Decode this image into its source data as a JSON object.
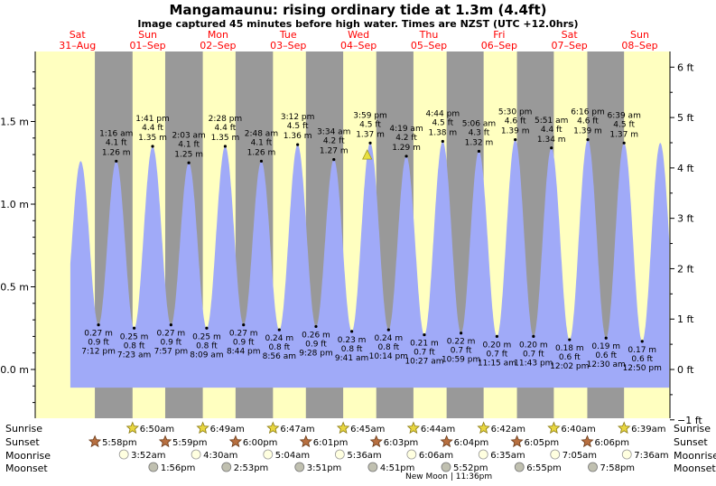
{
  "header": {
    "title": "Mangamaunu: rising  ordinary tide at 1.3m (4.4ft)",
    "subtitle": "Image captured 45 minutes before high water. Times are NZST (UTC +12.0hrs)"
  },
  "days": [
    {
      "dow": "Sat",
      "date": "31–Aug"
    },
    {
      "dow": "Sun",
      "date": "01–Sep"
    },
    {
      "dow": "Mon",
      "date": "02–Sep"
    },
    {
      "dow": "Tue",
      "date": "03–Sep"
    },
    {
      "dow": "Wed",
      "date": "04–Sep"
    },
    {
      "dow": "Thu",
      "date": "05–Sep"
    },
    {
      "dow": "Fri",
      "date": "06–Sep"
    },
    {
      "dow": "Sat",
      "date": "07–Sep"
    },
    {
      "dow": "Sun",
      "date": "08–Sep"
    }
  ],
  "colors": {
    "day": "#ffffc0",
    "night": "#999999",
    "water": "#a0aaf8",
    "date_text": "#ff0000",
    "marker": "#e8e040"
  },
  "chart_data": {
    "type": "area",
    "title": "Mangamaunu: rising  ordinary tide at 1.3m (4.4ft)",
    "x_range_days": [
      0,
      9
    ],
    "ylim_m": [
      -0.3,
      1.9
    ],
    "ylabel_left": "m",
    "ylabel_right": "ft",
    "left_ticks": [
      "0.0 m",
      "0.5 m",
      "1.0 m",
      "1.5 m"
    ],
    "right_ticks": [
      "−1 ft",
      "0 ft",
      "1 ft",
      "2 ft",
      "3 ft",
      "4 ft",
      "5 ft",
      "6 ft"
    ],
    "current": {
      "label": "rising ordinary tide at 1.3m (4.4ft)",
      "t": 4.6229,
      "h": 1.3
    },
    "extremes": [
      {
        "kind": "low",
        "time": "7:12 pm",
        "ft": "0.9 ft",
        "m": "0.27 m",
        "t": 0.8,
        "h": 0.27
      },
      {
        "kind": "high",
        "time": "1:16 am",
        "ft": "4.1 ft",
        "m": "1.26 m",
        "t": 1.0528,
        "h": 1.26
      },
      {
        "kind": "low",
        "time": "7:23 am",
        "ft": "0.8 ft",
        "m": "0.25 m",
        "t": 1.3076,
        "h": 0.25
      },
      {
        "kind": "high",
        "time": "1:41 pm",
        "ft": "4.4 ft",
        "m": "1.35 m",
        "t": 1.5701,
        "h": 1.35
      },
      {
        "kind": "low",
        "time": "7:57 pm",
        "ft": "0.9 ft",
        "m": "0.27 m",
        "t": 1.8313,
        "h": 0.27
      },
      {
        "kind": "high",
        "time": "2:03 am",
        "ft": "4.1 ft",
        "m": "1.25 m",
        "t": 2.0854,
        "h": 1.25
      },
      {
        "kind": "low",
        "time": "8:09 am",
        "ft": "0.8 ft",
        "m": "0.25 m",
        "t": 2.3396,
        "h": 0.25
      },
      {
        "kind": "high",
        "time": "2:28 pm",
        "ft": "4.4 ft",
        "m": "1.35 m",
        "t": 2.6028,
        "h": 1.35
      },
      {
        "kind": "low",
        "time": "8:44 pm",
        "ft": "0.9 ft",
        "m": "0.27 m",
        "t": 2.8639,
        "h": 0.27
      },
      {
        "kind": "high",
        "time": "2:48 am",
        "ft": "4.1 ft",
        "m": "1.26 m",
        "t": 3.1167,
        "h": 1.26
      },
      {
        "kind": "low",
        "time": "8:56 am",
        "ft": "0.8 ft",
        "m": "0.24 m",
        "t": 3.3722,
        "h": 0.24
      },
      {
        "kind": "high",
        "time": "3:12 pm",
        "ft": "4.5 ft",
        "m": "1.36 m",
        "t": 3.6333,
        "h": 1.36
      },
      {
        "kind": "low",
        "time": "9:28 pm",
        "ft": "0.9 ft",
        "m": "0.26 m",
        "t": 3.8944,
        "h": 0.26
      },
      {
        "kind": "high",
        "time": "3:34 am",
        "ft": "4.2 ft",
        "m": "1.27 m",
        "t": 4.1486,
        "h": 1.27
      },
      {
        "kind": "low",
        "time": "9:41 am",
        "ft": "0.8 ft",
        "m": "0.23 m",
        "t": 4.4035,
        "h": 0.23
      },
      {
        "kind": "high",
        "time": "3:59 pm",
        "ft": "4.5 ft",
        "m": "1.37 m",
        "t": 4.666,
        "h": 1.37
      },
      {
        "kind": "low",
        "time": "10:14 pm",
        "ft": "0.8 ft",
        "m": "0.24 m",
        "t": 4.9264,
        "h": 0.24
      },
      {
        "kind": "high",
        "time": "4:19 am",
        "ft": "4.2 ft",
        "m": "1.29 m",
        "t": 5.1799,
        "h": 1.29
      },
      {
        "kind": "low",
        "time": "10:27 am",
        "ft": "0.7 ft",
        "m": "0.21 m",
        "t": 5.4354,
        "h": 0.21
      },
      {
        "kind": "high",
        "time": "4:44 pm",
        "ft": "4.5 ft",
        "m": "1.38 m",
        "t": 5.6972,
        "h": 1.38
      },
      {
        "kind": "low",
        "time": "10:59 pm",
        "ft": "0.7 ft",
        "m": "0.22 m",
        "t": 5.9576,
        "h": 0.22
      },
      {
        "kind": "high",
        "time": "5:06 am",
        "ft": "4.3 ft",
        "m": "1.32 m",
        "t": 6.2125,
        "h": 1.32
      },
      {
        "kind": "low",
        "time": "11:15 am",
        "ft": "0.7 ft",
        "m": "0.20 m",
        "t": 6.4688,
        "h": 0.2
      },
      {
        "kind": "high",
        "time": "5:30 pm",
        "ft": "4.6 ft",
        "m": "1.39 m",
        "t": 6.7292,
        "h": 1.39
      },
      {
        "kind": "low",
        "time": "11:43 pm",
        "ft": "0.7 ft",
        "m": "0.20 m",
        "t": 6.9882,
        "h": 0.2
      },
      {
        "kind": "high",
        "time": "5:51 am",
        "ft": "4.4 ft",
        "m": "1.34 m",
        "t": 7.2438,
        "h": 1.34
      },
      {
        "kind": "low",
        "time": "12:02 pm",
        "ft": "0.6 ft",
        "m": "0.18 m",
        "t": 7.5014,
        "h": 0.18
      },
      {
        "kind": "high",
        "time": "6:16 pm",
        "ft": "4.6 ft",
        "m": "1.39 m",
        "t": 7.7611,
        "h": 1.39
      },
      {
        "kind": "low",
        "time": "12:30 am",
        "ft": "0.6 ft",
        "m": "0.19 m",
        "t": 8.0208,
        "h": 0.19
      },
      {
        "kind": "high",
        "time": "6:39 am",
        "ft": "4.5 ft",
        "m": "1.37 m",
        "t": 8.2771,
        "h": 1.37
      },
      {
        "kind": "low",
        "time": "12:50 pm",
        "ft": "0.6 ft",
        "m": "0.17 m",
        "t": 8.5347,
        "h": 0.17
      }
    ],
    "nights": [
      {
        "start": 0.7486,
        "end": 1.2847
      },
      {
        "start": 1.7493,
        "end": 2.284
      },
      {
        "start": 2.75,
        "end": 3.2826
      },
      {
        "start": 3.7507,
        "end": 4.2813
      },
      {
        "start": 4.7521,
        "end": 5.2806
      },
      {
        "start": 5.7528,
        "end": 6.2792
      },
      {
        "start": 6.7535,
        "end": 7.2778
      },
      {
        "start": 7.7542,
        "end": 8.2771
      }
    ],
    "tide_window": [
      0.4,
      8.92
    ]
  },
  "sun_moon": {
    "labels": {
      "sunrise": "Sunrise",
      "sunset": "Sunset",
      "moonrise": "Moonrise",
      "moonset": "Moonset"
    },
    "sunrise": [
      {
        "t": 1.2847,
        "time": "6:50am"
      },
      {
        "t": 2.284,
        "time": "6:49am"
      },
      {
        "t": 3.2826,
        "time": "6:47am"
      },
      {
        "t": 4.2813,
        "time": "6:45am"
      },
      {
        "t": 5.2806,
        "time": "6:44am"
      },
      {
        "t": 6.2792,
        "time": "6:42am"
      },
      {
        "t": 7.2778,
        "time": "6:40am"
      },
      {
        "t": 8.2771,
        "time": "6:39am"
      }
    ],
    "sunset": [
      {
        "t": 0.7486,
        "time": "5:58pm"
      },
      {
        "t": 1.7493,
        "time": "5:59pm"
      },
      {
        "t": 2.75,
        "time": "6:00pm"
      },
      {
        "t": 3.7507,
        "time": "6:01pm"
      },
      {
        "t": 4.7521,
        "time": "6:03pm"
      },
      {
        "t": 5.7528,
        "time": "6:04pm"
      },
      {
        "t": 6.7535,
        "time": "6:05pm"
      },
      {
        "t": 7.7542,
        "time": "6:06pm"
      }
    ],
    "moonrise": [
      {
        "t": 1.1611,
        "time": "3:52am"
      },
      {
        "t": 2.1875,
        "time": "4:30am"
      },
      {
        "t": 3.2111,
        "time": "5:04am"
      },
      {
        "t": 4.2333,
        "time": "5:36am"
      },
      {
        "t": 5.2542,
        "time": "6:06am"
      },
      {
        "t": 6.2743,
        "time": "6:35am"
      },
      {
        "t": 7.2951,
        "time": "7:05am"
      },
      {
        "t": 8.3167,
        "time": "7:36am"
      }
    ],
    "moonset": [
      {
        "t": 1.5806,
        "time": "1:56pm"
      },
      {
        "t": 2.6201,
        "time": "2:53pm"
      },
      {
        "t": 3.6604,
        "time": "3:51pm"
      },
      {
        "t": 4.7021,
        "time": "4:51pm"
      },
      {
        "t": 5.7444,
        "time": "5:52pm"
      },
      {
        "t": 6.7882,
        "time": "6:55pm"
      },
      {
        "t": 7.8319,
        "time": "7:58pm"
      }
    ],
    "new_moon": "New Moon | 11:36pm"
  }
}
